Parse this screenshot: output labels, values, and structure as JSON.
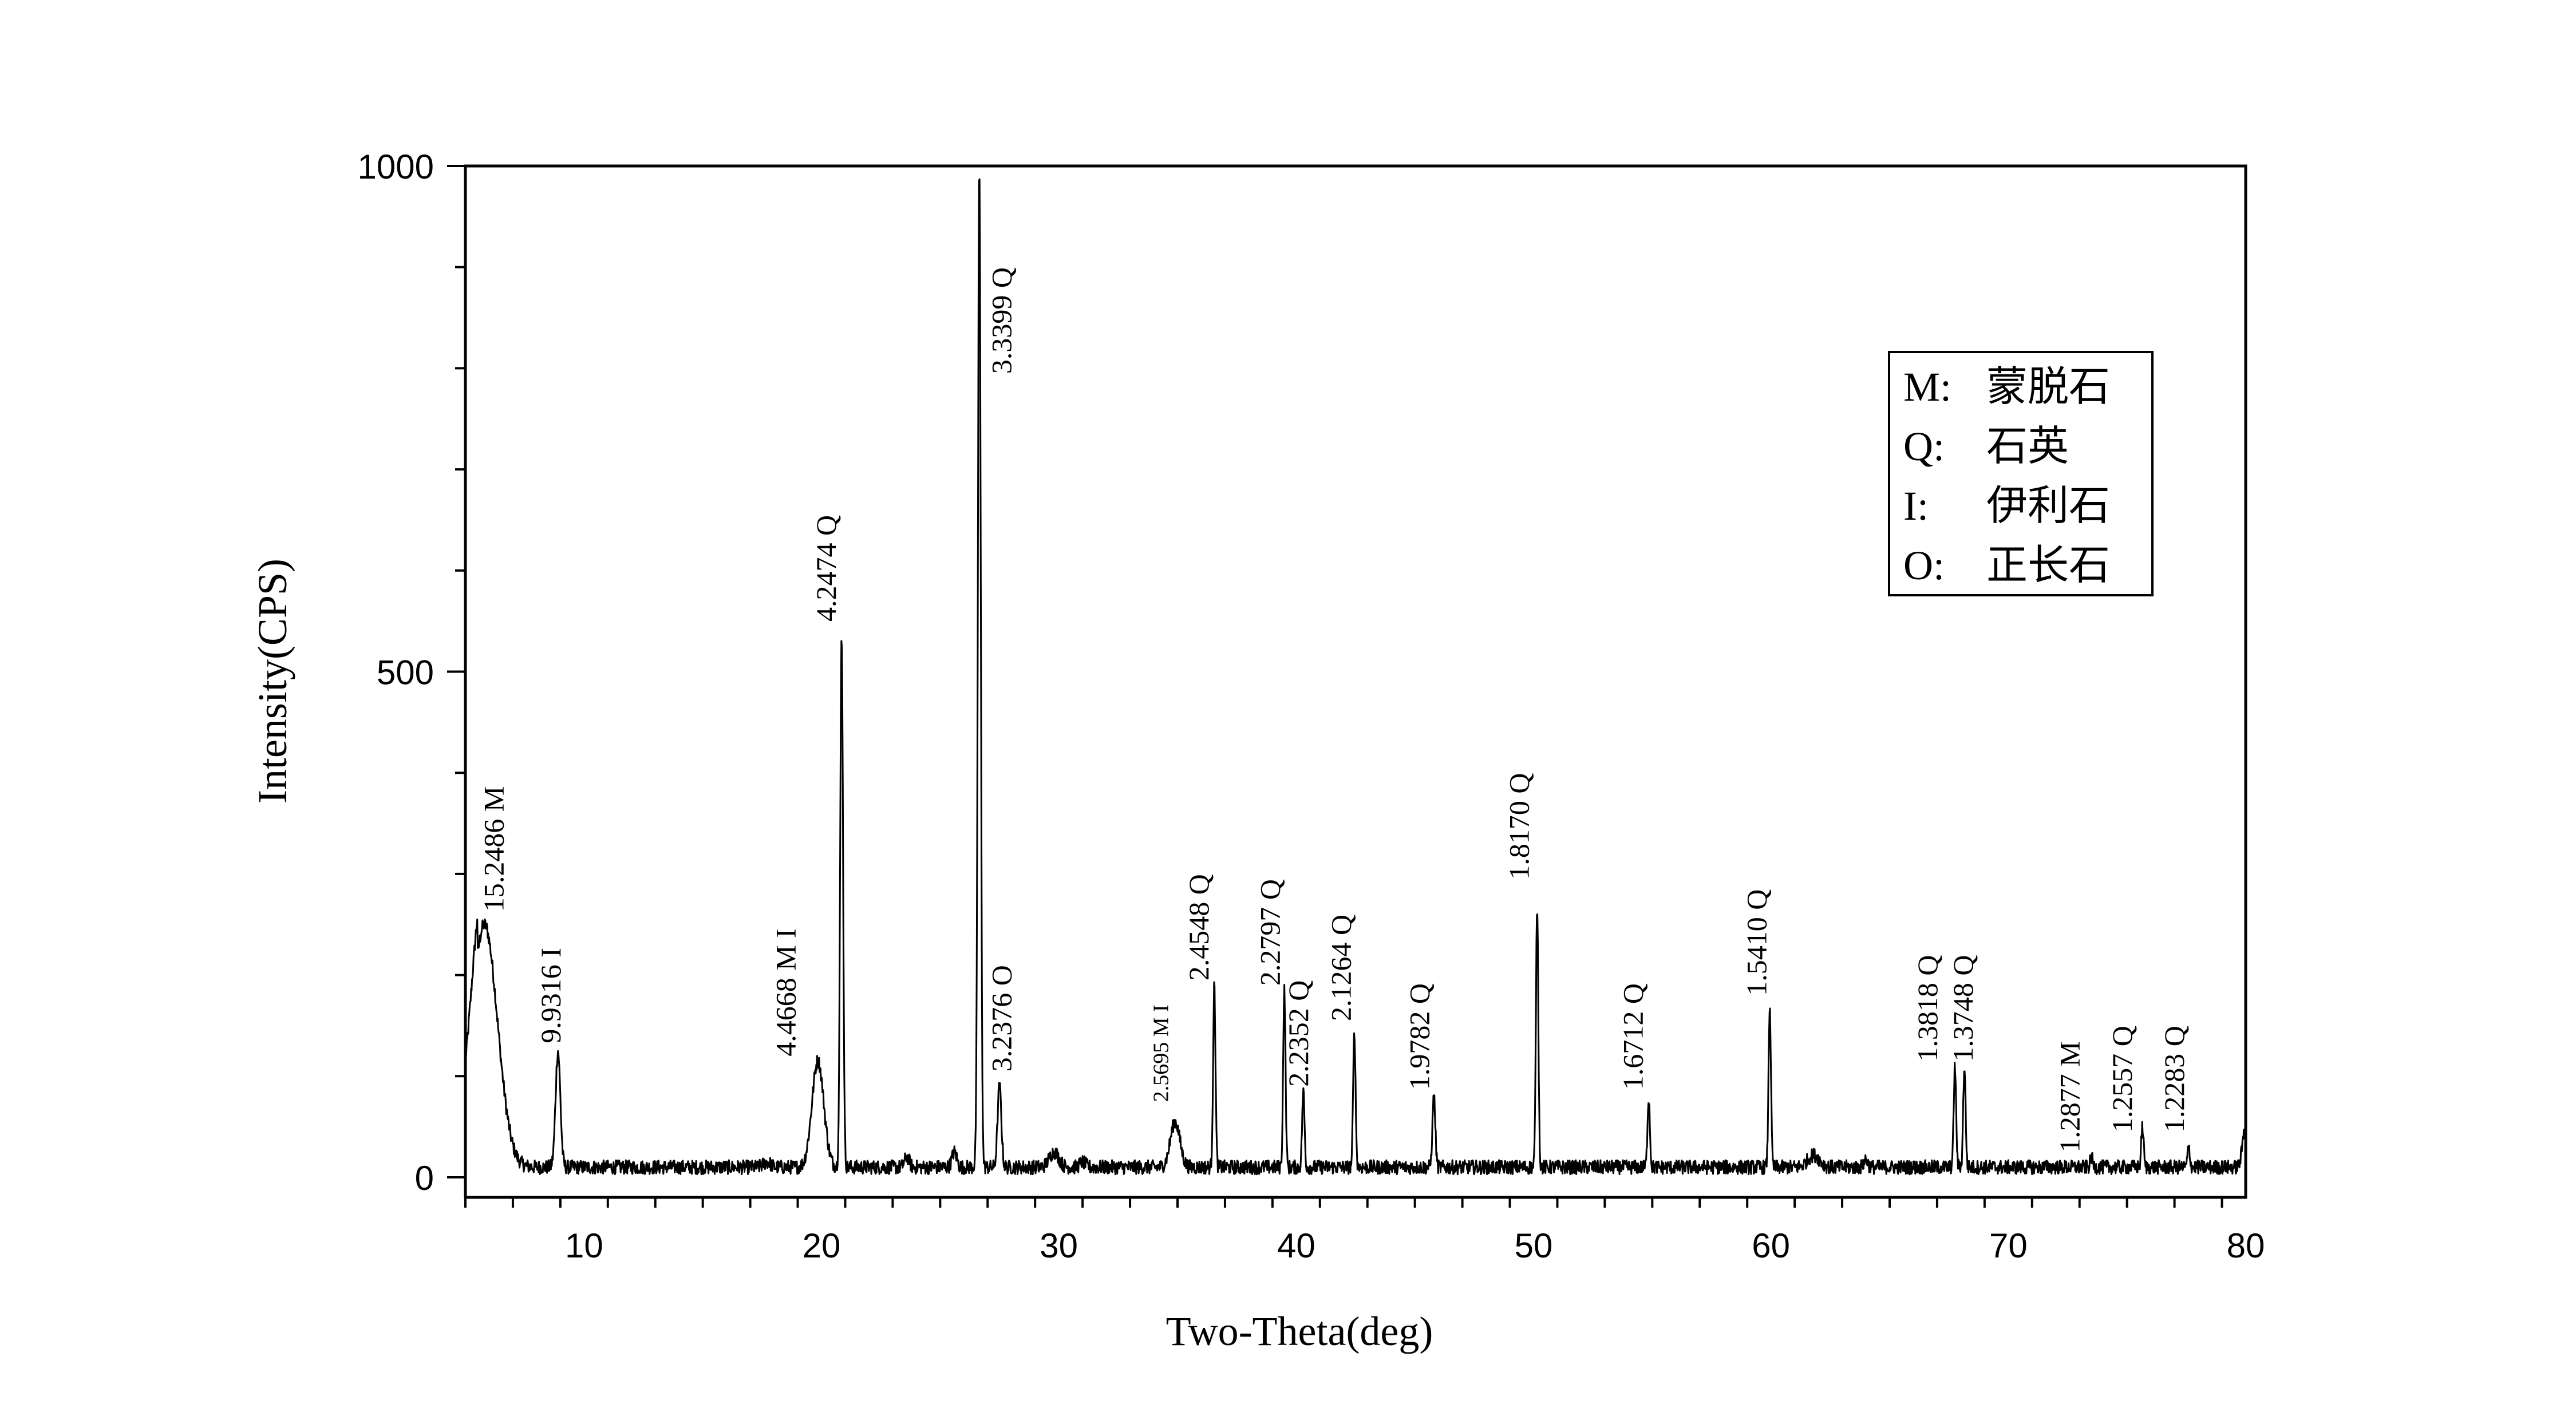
{
  "chart_data": {
    "type": "line",
    "xlabel": "Two-Theta(deg)",
    "ylabel": "Intensity(CPS)",
    "xlim": [
      5,
      80
    ],
    "ylim": [
      -20,
      1000
    ],
    "xticks": [
      10,
      20,
      30,
      40,
      50,
      60,
      70,
      80
    ],
    "yticks": [
      0,
      500,
      1000
    ],
    "grid": false,
    "legend_position": "top-right",
    "legend": [
      {
        "code": "M:",
        "name": "蒙脱石"
      },
      {
        "code": "Q:",
        "name": "石英"
      },
      {
        "code": "I:",
        "name": "伊利石"
      },
      {
        "code": "O:",
        "name": "正长石"
      }
    ],
    "baseline": 10,
    "peaks": [
      {
        "x": 5.8,
        "y": 250,
        "w": 0.55
      },
      {
        "x": 8.9,
        "y": 125,
        "w": 0.1
      },
      {
        "x": 17.7,
        "y": 15,
        "w": 0.15
      },
      {
        "x": 19.85,
        "y": 115,
        "w": 0.25
      },
      {
        "x": 20.85,
        "y": 535,
        "w": 0.06
      },
      {
        "x": 23.6,
        "y": 20,
        "w": 0.1
      },
      {
        "x": 25.6,
        "y": 25,
        "w": 0.1
      },
      {
        "x": 26.65,
        "y": 1000,
        "w": 0.06
      },
      {
        "x": 27.5,
        "y": 90,
        "w": 0.08
      },
      {
        "x": 29.8,
        "y": 25,
        "w": 0.2
      },
      {
        "x": 31.0,
        "y": 15,
        "w": 0.12
      },
      {
        "x": 34.9,
        "y": 55,
        "w": 0.2
      },
      {
        "x": 36.55,
        "y": 190,
        "w": 0.05
      },
      {
        "x": 39.5,
        "y": 185,
        "w": 0.05
      },
      {
        "x": 40.3,
        "y": 85,
        "w": 0.05
      },
      {
        "x": 42.45,
        "y": 145,
        "w": 0.05
      },
      {
        "x": 45.8,
        "y": 80,
        "w": 0.06
      },
      {
        "x": 50.15,
        "y": 270,
        "w": 0.05
      },
      {
        "x": 54.85,
        "y": 80,
        "w": 0.05
      },
      {
        "x": 59.95,
        "y": 170,
        "w": 0.05
      },
      {
        "x": 61.8,
        "y": 22,
        "w": 0.25
      },
      {
        "x": 64.0,
        "y": 18,
        "w": 0.08
      },
      {
        "x": 67.75,
        "y": 110,
        "w": 0.05
      },
      {
        "x": 68.15,
        "y": 110,
        "w": 0.05
      },
      {
        "x": 73.5,
        "y": 20,
        "w": 0.05
      },
      {
        "x": 75.65,
        "y": 50,
        "w": 0.05
      },
      {
        "x": 77.6,
        "y": 30,
        "w": 0.05
      },
      {
        "x": 80.0,
        "y": 55,
        "w": 0.12
      }
    ],
    "annotations": [
      {
        "text": "15.2486",
        "suffix": "M",
        "x": 6.6,
        "y": 258,
        "size": 50
      },
      {
        "text": "9.9316",
        "suffix": "I",
        "x": 9.0,
        "y": 128,
        "size": 50
      },
      {
        "text": "4.4668",
        "suffix": "M I",
        "x": 18.9,
        "y": 115,
        "size": 50
      },
      {
        "text": "4.2474",
        "suffix": "Q",
        "x": 20.6,
        "y": 545,
        "size": 50
      },
      {
        "text": "3.3399",
        "suffix": "Q",
        "x": 28.0,
        "y": 790,
        "size": 50
      },
      {
        "text": "3.2376",
        "suffix": "O",
        "x": 28.0,
        "y": 100,
        "size": 50
      },
      {
        "text": "2.5695",
        "suffix": "M I",
        "x": 34.6,
        "y": 70,
        "size": 38
      },
      {
        "text": "2.4548",
        "suffix": "Q",
        "x": 36.3,
        "y": 190,
        "size": 50
      },
      {
        "text": "2.2797",
        "suffix": "Q",
        "x": 39.3,
        "y": 185,
        "size": 50
      },
      {
        "text": "2.2352",
        "suffix": "Q",
        "x": 40.5,
        "y": 85,
        "size": 50
      },
      {
        "text": "2.1264",
        "suffix": "Q",
        "x": 42.3,
        "y": 150,
        "size": 50
      },
      {
        "text": "1.9782",
        "suffix": "Q",
        "x": 45.6,
        "y": 82,
        "size": 50
      },
      {
        "text": "1.8170",
        "suffix": "Q",
        "x": 49.8,
        "y": 290,
        "size": 50
      },
      {
        "text": "1.6712",
        "suffix": "Q",
        "x": 54.6,
        "y": 82,
        "size": 50
      },
      {
        "text": "1.5410",
        "suffix": "Q",
        "x": 59.8,
        "y": 175,
        "size": 50
      },
      {
        "text": "1.3818",
        "suffix": "Q",
        "x": 67.0,
        "y": 110,
        "size": 50
      },
      {
        "text": "1.3748",
        "suffix": "Q",
        "x": 68.5,
        "y": 110,
        "size": 50
      },
      {
        "text": "1.2877",
        "suffix": "M",
        "x": 73.0,
        "y": 20,
        "size": 50
      },
      {
        "text": "1.2557",
        "suffix": "Q",
        "x": 75.2,
        "y": 40,
        "size": 50
      },
      {
        "text": "1.2283",
        "suffix": "Q",
        "x": 77.4,
        "y": 40,
        "size": 50
      }
    ]
  }
}
